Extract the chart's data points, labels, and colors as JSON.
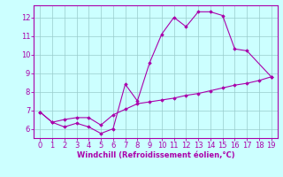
{
  "line_a_x": [
    0,
    1,
    2,
    3,
    4,
    5,
    6,
    7,
    8,
    9,
    10,
    11,
    12,
    13,
    14,
    15,
    16,
    17,
    19
  ],
  "line_a_y": [
    6.9,
    6.35,
    6.1,
    6.3,
    6.1,
    5.75,
    6.0,
    8.4,
    7.5,
    9.55,
    11.1,
    12.0,
    11.5,
    12.3,
    12.3,
    12.1,
    10.3,
    10.2,
    8.8
  ],
  "line_b_x": [
    0,
    1,
    2,
    3,
    4,
    5,
    6,
    7,
    8,
    9,
    10,
    11,
    12,
    13,
    14,
    15,
    16,
    17,
    18,
    19
  ],
  "line_b_y": [
    6.9,
    6.35,
    6.5,
    6.6,
    6.6,
    6.2,
    6.75,
    7.05,
    7.35,
    7.45,
    7.55,
    7.65,
    7.8,
    7.9,
    8.05,
    8.2,
    8.35,
    8.45,
    8.6,
    8.8
  ],
  "line_color": "#aa00aa",
  "bg_color": "#ccffff",
  "grid_color": "#99cccc",
  "xlabel": "Windchill (Refroidissement éolien,°C)",
  "xlabel_color": "#aa00aa",
  "tick_color": "#aa00aa",
  "spine_color": "#aa00aa",
  "ylim_min": 5.5,
  "ylim_max": 12.65,
  "xlim_min": -0.5,
  "xlim_max": 19.5,
  "yticks": [
    6,
    7,
    8,
    9,
    10,
    11,
    12
  ],
  "xticks": [
    0,
    1,
    2,
    3,
    4,
    5,
    6,
    7,
    8,
    9,
    10,
    11,
    12,
    13,
    14,
    15,
    16,
    17,
    18,
    19
  ],
  "tick_fontsize": 6,
  "xlabel_fontsize": 6,
  "marker": "D",
  "markersize": 1.8,
  "linewidth": 0.8
}
